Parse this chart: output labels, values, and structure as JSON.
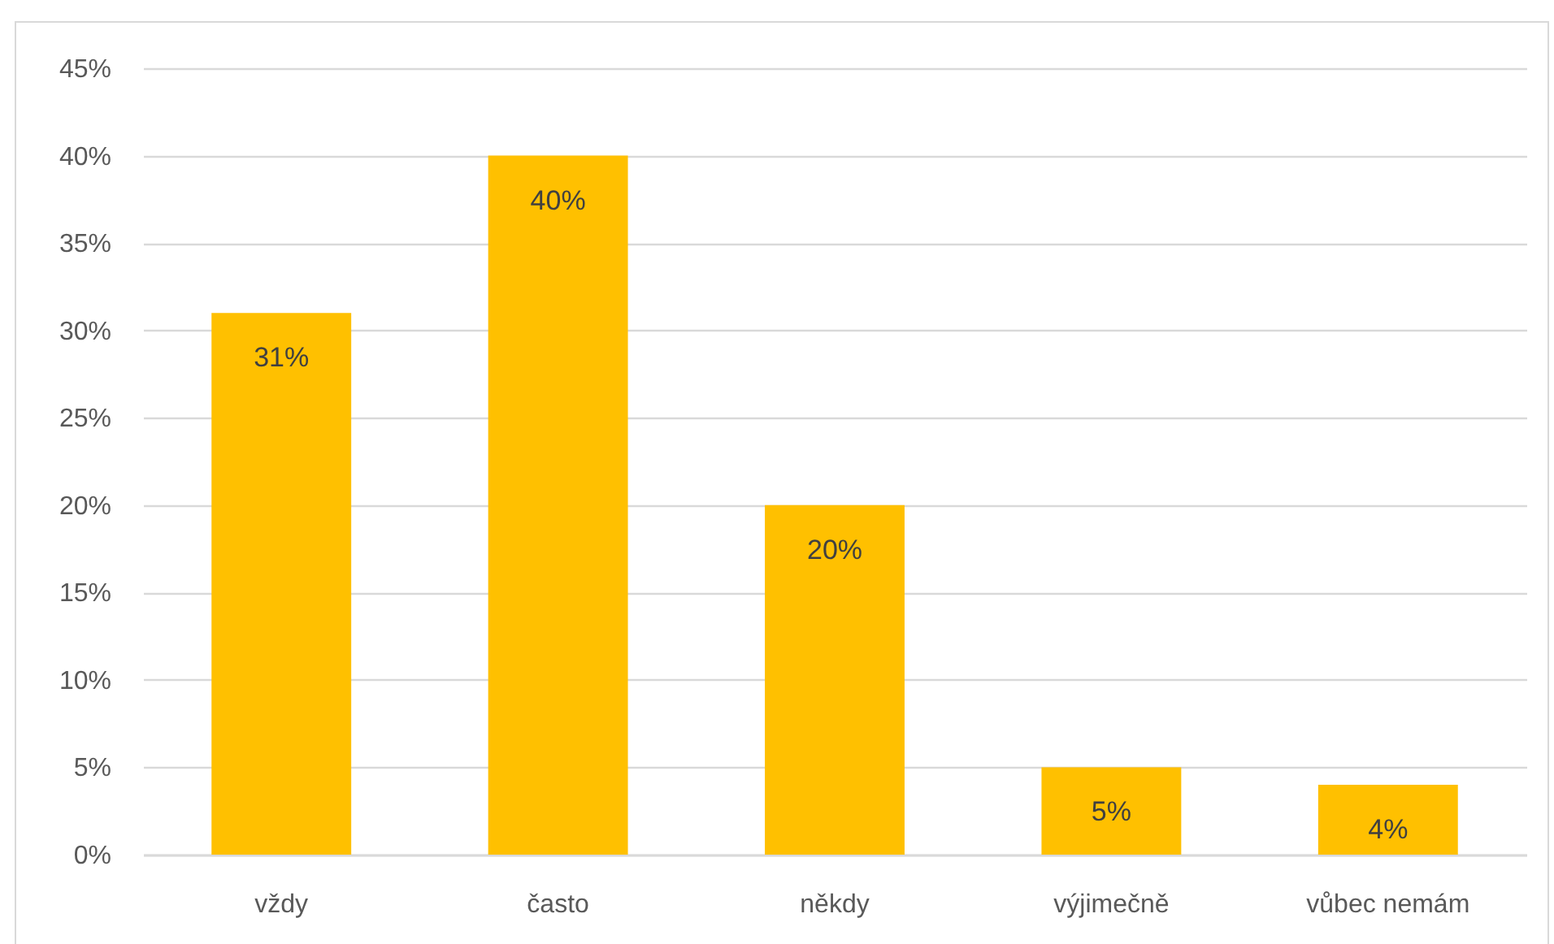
{
  "chart_data": {
    "type": "bar",
    "categories": [
      "vždy",
      "často",
      "někdy",
      "výjimečně",
      "vůbec nemám"
    ],
    "values": [
      31,
      40,
      20,
      5,
      4
    ],
    "color": "#ffc000",
    "value_labels": [
      "31%",
      "40%",
      "20%",
      "5%",
      "4%"
    ],
    "ylim": [
      0,
      45
    ],
    "yticks": [
      {
        "value": 0,
        "label": "0%"
      },
      {
        "value": 5,
        "label": "5%"
      },
      {
        "value": 10,
        "label": "10%"
      },
      {
        "value": 15,
        "label": "15%"
      },
      {
        "value": 20,
        "label": "20%"
      },
      {
        "value": 25,
        "label": "25%"
      },
      {
        "value": 30,
        "label": "30%"
      },
      {
        "value": 35,
        "label": "35%"
      },
      {
        "value": 40,
        "label": "40%"
      },
      {
        "value": 45,
        "label": "45%"
      }
    ],
    "grid": "y"
  }
}
